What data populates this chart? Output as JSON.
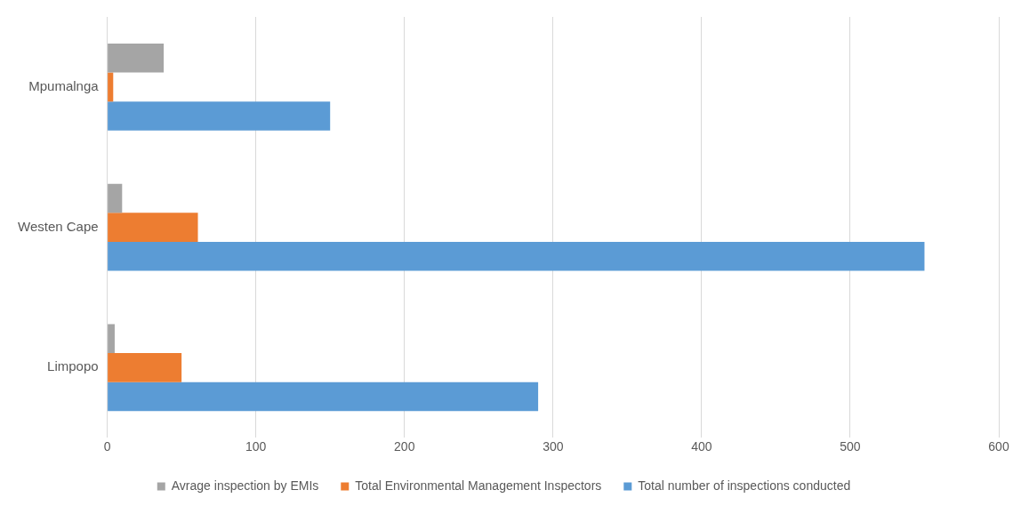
{
  "chart_data": {
    "type": "bar",
    "orientation": "horizontal",
    "categories": [
      "Mpumalnga",
      "Westen Cape",
      "Limpopo"
    ],
    "series": [
      {
        "name": "Avrage inspection by EMIs",
        "color": "#a5a5a5",
        "values": [
          38,
          10,
          5
        ]
      },
      {
        "name": "Total Environmental Management Inspectors",
        "color": "#ed7d31",
        "values": [
          4,
          61,
          50
        ]
      },
      {
        "name": "Total number of inspections conducted",
        "color": "#5b9bd5",
        "values": [
          150,
          550,
          290
        ]
      }
    ],
    "xlim": [
      0,
      600
    ],
    "xticks": [
      0,
      100,
      200,
      300,
      400,
      500,
      600
    ],
    "grid": "x",
    "legend": "bottom"
  }
}
